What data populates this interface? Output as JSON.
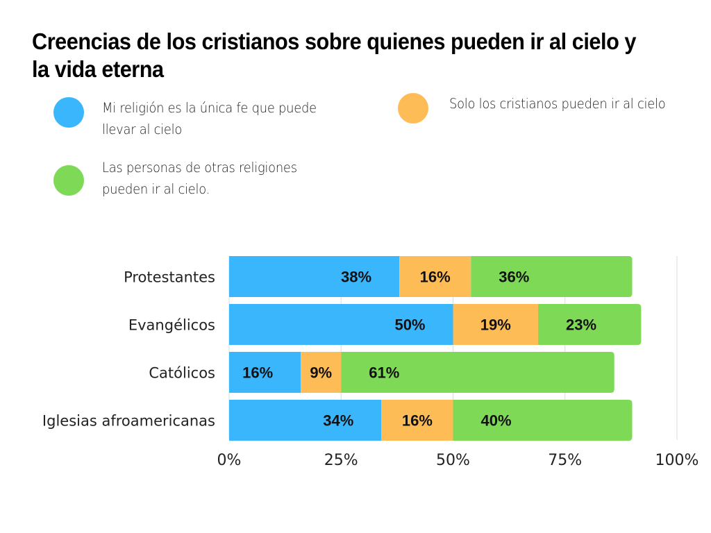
{
  "title": "Creencias de los cristianos sobre quienes pueden ir al cielo y la vida eterna",
  "legend": [
    {
      "label_lines": [
        "Mi religión es la única fe que puede",
        "llevar al cielo"
      ],
      "color": "#3AB6FD"
    },
    {
      "label_lines": [
        "Solo los cristianos pueden ir al cielo"
      ],
      "color": "#FEBC56"
    },
    {
      "label_lines": [
        "Las personas de otras religiones",
        "pueden ir al cielo."
      ],
      "color": "#7ED957"
    }
  ],
  "chart_data": {
    "type": "bar",
    "orientation": "horizontal",
    "stacked": true,
    "title": "Creencias de los cristianos sobre quienes pueden ir al cielo y la vida eterna",
    "categories": [
      "Protestantes",
      "Evangélicos",
      "Católicos",
      "Iglesias afroamericanas"
    ],
    "series": [
      {
        "name": "Mi religión es la única fe que puede llevar al cielo",
        "color": "#3AB6FD",
        "values": [
          38,
          50,
          16,
          34
        ]
      },
      {
        "name": "Solo los cristianos pueden ir al cielo",
        "color": "#FEBC56",
        "values": [
          16,
          19,
          9,
          16
        ]
      },
      {
        "name": "Las personas de otras religiones pueden ir al cielo.",
        "color": "#7ED957",
        "values": [
          36,
          23,
          61,
          40
        ]
      }
    ],
    "xlim": [
      0,
      100
    ],
    "xticks": [
      0,
      25,
      50,
      75,
      100
    ],
    "xtick_labels": [
      "0%",
      "25%",
      "50%",
      "75%",
      "100%"
    ],
    "value_suffix": "%",
    "xlabel": "",
    "ylabel": "",
    "grid": true,
    "legend_position": "top"
  }
}
